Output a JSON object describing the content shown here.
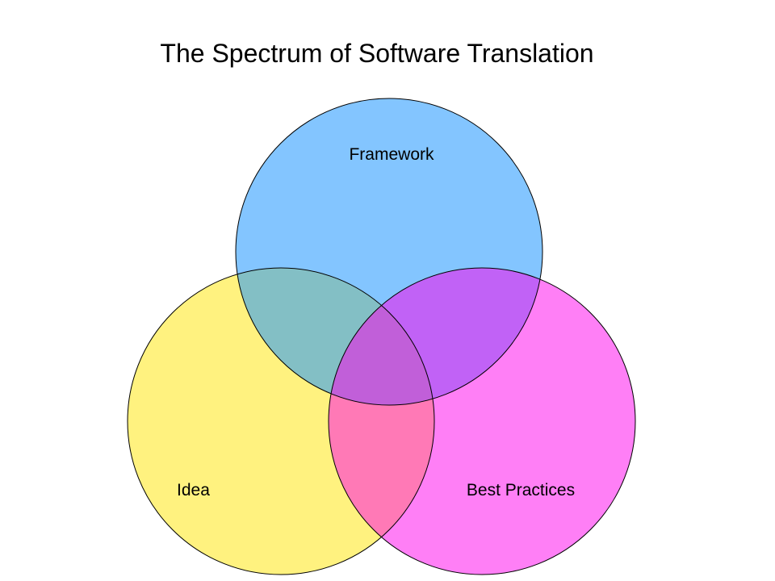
{
  "title": "The Spectrum of Software Translation",
  "sets": [
    {
      "key": "framework",
      "label": "Framework",
      "color": "#1e96ff"
    },
    {
      "key": "idea",
      "label": "Idea",
      "color": "#ffe600"
    },
    {
      "key": "best_practices",
      "label": "Best Practices",
      "color": "#ff00ee"
    }
  ],
  "colors": {
    "background": "#ffffff",
    "outline": "#000000"
  }
}
